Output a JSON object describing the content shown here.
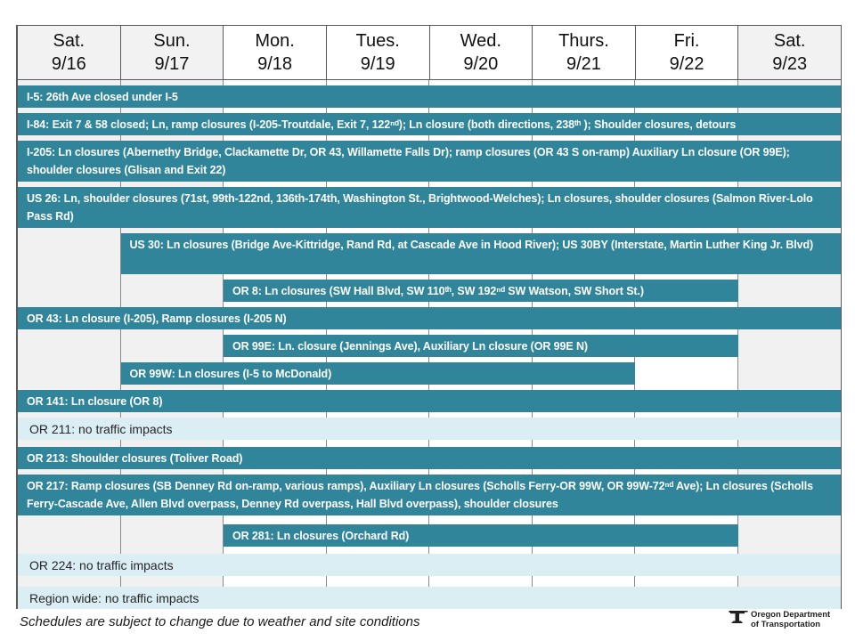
{
  "header": {
    "days": [
      {
        "day": "Sat.",
        "date": "9/16",
        "weekend": true
      },
      {
        "day": "Sun.",
        "date": "9/17",
        "weekend": true
      },
      {
        "day": "Mon.",
        "date": "9/18",
        "weekend": false
      },
      {
        "day": "Tues.",
        "date": "9/19",
        "weekend": false
      },
      {
        "day": "Wed.",
        "date": "9/20",
        "weekend": false
      },
      {
        "day": "Thurs.",
        "date": "9/21",
        "weekend": false
      },
      {
        "day": "Fri.",
        "date": "9/22",
        "weekend": false
      },
      {
        "day": "Sat.",
        "date": "9/23",
        "weekend": true
      }
    ]
  },
  "rows": [
    {
      "label": "I-5: 26th Ave closed under I-5",
      "start": 1,
      "end": 8,
      "style": "closure"
    },
    {
      "label": "I-84: Exit 7 & 58 closed; Ln, ramp closures (I-205-Troutdale, Exit 7, 122ⁿᵈ); Ln closure (both directions, 238ᵗʰ ); Shoulder closures, detours",
      "start": 1,
      "end": 8,
      "style": "closure"
    },
    {
      "label": "I-205:  Ln closures (Abernethy Bridge, Clackamette Dr, OR 43, Willamette Falls Dr); ramp closures (OR 43 S on-ramp) Auxiliary Ln closure (OR 99E);  shoulder closures (Glisan and Exit 22)",
      "start": 1,
      "end": 8,
      "style": "closure"
    },
    {
      "label": "US 26: Ln, shoulder closures (71st, 99th-122nd, 136th-174th, Washington St., Brightwood-Welches); Ln closures, shoulder closures (Salmon River-Lolo Pass Rd)",
      "start": 1,
      "end": 8,
      "style": "closure"
    },
    {
      "label": "US 30: Ln closures (Bridge Ave-Kittridge, Rand Rd, at Cascade Ave in Hood River); US 30BY (Interstate, Martin Luther King Jr. Blvd)",
      "start": 2,
      "end": 8,
      "style": "closure"
    },
    {
      "label": "OR 8:  Ln closures (SW Hall Blvd, SW 110ᵗʰ, SW 192ⁿᵈ  SW Watson, SW Short St.)",
      "start": 3,
      "end": 7,
      "style": "closure"
    },
    {
      "label": "OR 43:  Ln closure (I-205), Ramp closures (I-205 N)",
      "start": 1,
      "end": 8,
      "style": "closure"
    },
    {
      "label": "OR 99E:  Ln. closure (Jennings Ave), Auxiliary Ln closure (OR 99E N)",
      "start": 3,
      "end": 7,
      "style": "closure"
    },
    {
      "label": "OR 99W: Ln closures (I-5 to McDonald)",
      "start": 2,
      "end": 6,
      "style": "closure"
    },
    {
      "label": "OR 141:  Ln closure (OR 8)",
      "start": 1,
      "end": 8,
      "style": "closure"
    },
    {
      "label": "OR 211: no traffic impacts",
      "start": 1,
      "end": 8,
      "style": "none"
    },
    {
      "label": "OR 213:  Shoulder closures (Toliver Road)",
      "start": 1,
      "end": 8,
      "style": "closure"
    },
    {
      "label": "OR 217:  Ramp closures (SB Denney Rd on-ramp, various ramps), Auxiliary Ln closures (Scholls Ferry-OR 99W, OR 99W-72ⁿᵈ Ave); Ln closures (Scholls Ferry-Cascade Ave, Allen Blvd overpass, Denney Rd overpass, Hall Blvd overpass), shoulder closures",
      "start": 1,
      "end": 8,
      "style": "closure"
    },
    {
      "label": "OR 281:  Ln closures (Orchard Rd)",
      "start": 3,
      "end": 7,
      "style": "closure"
    },
    {
      "label": "OR 224: no traffic impacts",
      "start": 1,
      "end": 8,
      "style": "none"
    },
    {
      "label": "Region wide: no traffic impacts",
      "start": 1,
      "end": 8,
      "style": "none"
    }
  ],
  "footer": {
    "note": "Schedules are subject to change due to weather and site conditions",
    "logo": {
      "line1": "Oregon Department",
      "line2": "of Transportation"
    }
  },
  "colors": {
    "closure_bar": "#31859B",
    "no_impact_row": "#DAEEF3",
    "weekend_column": "#F1F1F1",
    "grid_border": "#8A8A8A",
    "outer_border": "#595959"
  },
  "chart_data": {
    "type": "table",
    "title": "Weekly traffic impact schedule 9/16 - 9/23",
    "categories": [
      "Sat. 9/16",
      "Sun. 9/17",
      "Mon. 9/18",
      "Tues. 9/19",
      "Wed. 9/20",
      "Thurs. 9/21",
      "Fri. 9/22",
      "Sat. 9/23"
    ],
    "rows": [
      {
        "route": "I-5",
        "impact": true,
        "start_day": "Sat. 9/16",
        "end_day": "Sat. 9/23",
        "detail": "26th Ave closed under I-5"
      },
      {
        "route": "I-84",
        "impact": true,
        "start_day": "Sat. 9/16",
        "end_day": "Sat. 9/23",
        "detail": "Exit 7 & 58 closed; Ln, ramp closures (I-205-Troutdale, Exit 7, 122nd); Ln closure (both directions, 238th); Shoulder closures, detours"
      },
      {
        "route": "I-205",
        "impact": true,
        "start_day": "Sat. 9/16",
        "end_day": "Sat. 9/23",
        "detail": "Ln closures (Abernethy Bridge, Clackamette Dr, OR 43, Willamette Falls Dr); ramp closures (OR 43 S on-ramp) Auxiliary Ln closure (OR 99E); shoulder closures (Glisan and Exit 22)"
      },
      {
        "route": "US 26",
        "impact": true,
        "start_day": "Sat. 9/16",
        "end_day": "Sat. 9/23",
        "detail": "Ln, shoulder closures (71st, 99th-122nd, 136th-174th, Washington St., Brightwood-Welches); Ln closures, shoulder closures (Salmon River-Lolo Pass Rd)"
      },
      {
        "route": "US 30",
        "impact": true,
        "start_day": "Sun. 9/17",
        "end_day": "Sat. 9/23",
        "detail": "Ln closures (Bridge Ave-Kittridge, Rand Rd, at Cascade Ave in Hood River); US 30BY (Interstate, Martin Luther King Jr. Blvd)"
      },
      {
        "route": "OR 8",
        "impact": true,
        "start_day": "Mon. 9/18",
        "end_day": "Fri. 9/22",
        "detail": "Ln closures (SW Hall Blvd, SW 110th, SW 192nd, SW Watson, SW Short St.)"
      },
      {
        "route": "OR 43",
        "impact": true,
        "start_day": "Sat. 9/16",
        "end_day": "Sat. 9/23",
        "detail": "Ln closure (I-205), Ramp closures (I-205 N)"
      },
      {
        "route": "OR 99E",
        "impact": true,
        "start_day": "Mon. 9/18",
        "end_day": "Fri. 9/22",
        "detail": "Ln. closure (Jennings Ave), Auxiliary Ln closure (OR 99E N)"
      },
      {
        "route": "OR 99W",
        "impact": true,
        "start_day": "Sun. 9/17",
        "end_day": "Thurs. 9/21",
        "detail": "Ln closures (I-5 to McDonald)"
      },
      {
        "route": "OR 141",
        "impact": true,
        "start_day": "Sat. 9/16",
        "end_day": "Sat. 9/23",
        "detail": "Ln closure (OR 8)"
      },
      {
        "route": "OR 211",
        "impact": false,
        "start_day": "Sat. 9/16",
        "end_day": "Sat. 9/23",
        "detail": "no traffic impacts"
      },
      {
        "route": "OR 213",
        "impact": true,
        "start_day": "Sat. 9/16",
        "end_day": "Sat. 9/23",
        "detail": "Shoulder closures (Toliver Road)"
      },
      {
        "route": "OR 217",
        "impact": true,
        "start_day": "Sat. 9/16",
        "end_day": "Sat. 9/23",
        "detail": "Ramp closures (SB Denney Rd on-ramp, various ramps), Auxiliary Ln closures (Scholls Ferry-OR 99W, OR 99W-72nd Ave); Ln closures (Scholls Ferry-Cascade Ave, Allen Blvd overpass, Denney Rd overpass, Hall Blvd overpass), shoulder closures"
      },
      {
        "route": "OR 281",
        "impact": true,
        "start_day": "Mon. 9/18",
        "end_day": "Fri. 9/22",
        "detail": "Ln closures (Orchard Rd)"
      },
      {
        "route": "OR 224",
        "impact": false,
        "start_day": "Sat. 9/16",
        "end_day": "Sat. 9/23",
        "detail": "no traffic impacts"
      },
      {
        "route": "Region wide",
        "impact": false,
        "start_day": "Sat. 9/16",
        "end_day": "Sat. 9/23",
        "detail": "no traffic impacts"
      }
    ],
    "legend_position": "none",
    "grid": true
  }
}
